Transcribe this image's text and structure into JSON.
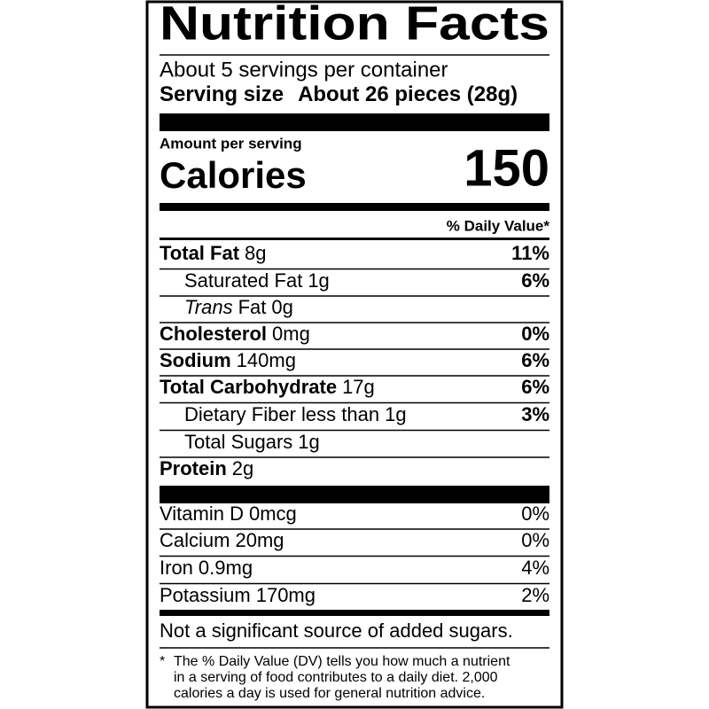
{
  "title": "Nutrition Facts",
  "servings": "About 5 servings per container",
  "serving_size": {
    "label": "Serving size",
    "value": "About 26 pieces (28g)"
  },
  "amount_per_serving": "Amount per serving",
  "calories": {
    "label": "Calories",
    "value": "150"
  },
  "daily_value_header": "% Daily Value*",
  "nutrients": [
    {
      "name": "Total Fat",
      "amount": "8g",
      "dv": "11%",
      "indent": false
    },
    {
      "name": "Saturated Fat",
      "amount": "1g",
      "dv": "6%",
      "indent": true
    },
    {
      "name_italic": "Trans",
      "name": "Fat",
      "amount": "0g",
      "indent": true
    },
    {
      "name": "Cholesterol",
      "amount": "0mg",
      "dv": "0%",
      "indent": false
    },
    {
      "name": "Sodium",
      "amount": "140mg",
      "dv": "6%",
      "indent": false
    },
    {
      "name": "Total Carbohydrate",
      "amount": "17g",
      "dv": "6%",
      "indent": false
    },
    {
      "name": "Dietary Fiber less than",
      "amount": "1g",
      "dv": "3%",
      "indent": true
    },
    {
      "name": "Total Sugars",
      "amount": "1g",
      "indent": true
    },
    {
      "name": "Protein",
      "amount": "2g",
      "indent": false
    }
  ],
  "vitamins": [
    {
      "name": "Vitamin D",
      "amount": "0mcg",
      "dv": "0%"
    },
    {
      "name": "Calcium",
      "amount": "20mg",
      "dv": "0%"
    },
    {
      "name": "Iron",
      "amount": "0.9mg",
      "dv": "4%"
    },
    {
      "name": "Potassium",
      "amount": "170mg",
      "dv": "2%"
    }
  ],
  "added_sugars_note": "Not a significant source of added sugars.",
  "footnote": {
    "marker": "*",
    "lines": [
      "The % Daily Value (DV) tells you how much a nutrient",
      "in a serving of food contributes to a daily diet. 2,000",
      "calories a day is used for general nutrition advice."
    ]
  }
}
